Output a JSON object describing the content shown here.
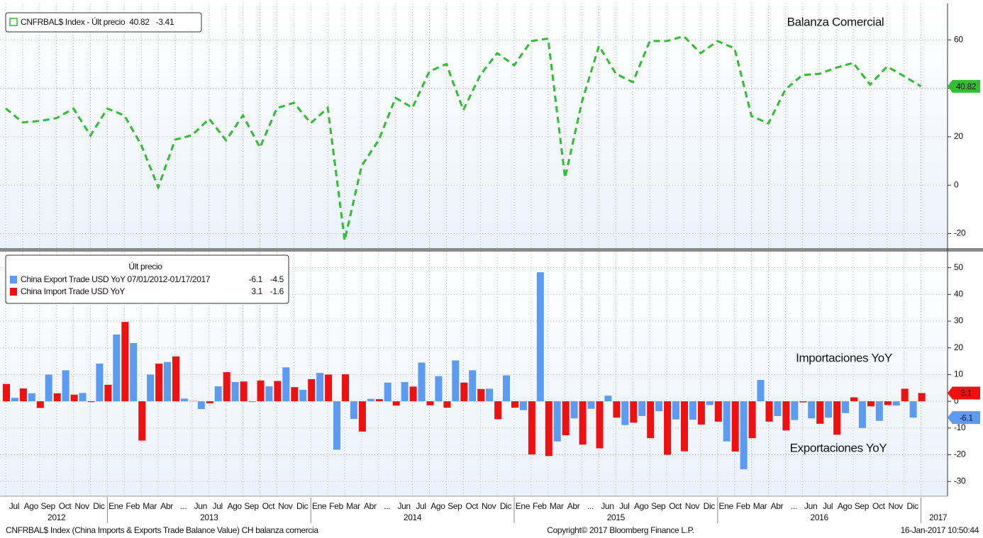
{
  "chart_data": [
    {
      "type": "line",
      "ylim": [
        -26,
        75
      ],
      "yticks": [
        -20,
        0,
        20,
        40,
        60
      ],
      "grid": true,
      "series": [
        {
          "name": "CNFRBAL$ Index - Últ precio",
          "color": "#2fbf2f",
          "change": -3.41,
          "annotation": "Balanza Comercial",
          "values": [
            31.7,
            25.9,
            26.5,
            27.7,
            31.6,
            20.5,
            31.6,
            28.8,
            16.5,
            -0.9,
            18.8,
            20.6,
            27.4,
            18.5,
            28.8,
            15.5,
            31.8,
            34.0,
            25.6,
            31.9,
            -22.8,
            8.0,
            18.5,
            36.0,
            32.0,
            47.0,
            50.0,
            31.0,
            45.5,
            54.5,
            49.5,
            59.5,
            60.5,
            3.0,
            34.5,
            57.5,
            46.0,
            42.5,
            59.5,
            59.5,
            61.5,
            54.5,
            59.5,
            56.5,
            28.5,
            25.5,
            39.5,
            45.5,
            46.0,
            48.5,
            50.5,
            41.5,
            49.0,
            45.0,
            40.82
          ]
        }
      ]
    },
    {
      "type": "bar",
      "ylim": [
        -35.5,
        56
      ],
      "yticks": [
        -30,
        -20,
        -10,
        0,
        10,
        20,
        30,
        40,
        50
      ],
      "grid": true,
      "legend_title": "Últ precio",
      "categories": [
        null,
        "Jul",
        "Ago",
        "Sep",
        "Oct",
        "Nov",
        "Dic",
        "Ene",
        "Feb",
        "Mar",
        "Abr",
        "...",
        "Jun",
        "Jul",
        "Ago",
        "Sep",
        "Oct",
        "Nov",
        "Dic",
        "Ene",
        "Feb",
        "Mar",
        "Abr",
        "...",
        "Jun",
        "Jul",
        "Ago",
        "Sep",
        "Oct",
        "Nov",
        "Dic",
        "Ene",
        "Feb",
        "Mar",
        "Abr",
        "...",
        "Jun",
        "Jul",
        "Ago",
        "Sep",
        "Oct",
        "Nov",
        "Dic",
        "Ene",
        "Feb",
        "Mar",
        "Abr",
        "...",
        "Jun",
        "Jul",
        "Ago",
        "Sep",
        "Oct",
        "Nov",
        "Dic"
      ],
      "year_labels": [
        "2012",
        "2013",
        "2014",
        "2015",
        "2016",
        "2017"
      ],
      "series": [
        {
          "name": "China Export Trade USD YoY 07/01/2012-01/17/2017",
          "color": "#5b9cf2",
          "change": -4.5,
          "annotation": "Exportaciones YoY",
          "values": [
            null,
            1.3,
            3,
            10,
            11.6,
            3.1,
            14.1,
            25,
            21.8,
            10,
            14.7,
            1,
            -2.9,
            5.6,
            7.2,
            -0.3,
            5.6,
            12.7,
            4.3,
            10.6,
            -18.1,
            -6.6,
            0.9,
            7,
            7.2,
            14.5,
            9.4,
            15.3,
            11.6,
            4.7,
            9.7,
            -3.3,
            48.3,
            -15,
            -6.4,
            -2.8,
            2.1,
            -8.9,
            -5.5,
            -3.7,
            -6.8,
            -6.9,
            -1.4,
            -15,
            -25.4,
            8,
            -5.5,
            -7,
            -6.4,
            -6.1,
            -4.4,
            -10,
            -7.3,
            -1.6,
            -6.1
          ]
        },
        {
          "name": "China Import Trade USD YoY",
          "color": "#f01010",
          "change": -1.6,
          "annotation": "Importaciones YoY",
          "values": [
            6.5,
            4.8,
            -2.5,
            3,
            2.5,
            -0.3,
            6.2,
            29.7,
            -14.7,
            14.1,
            16.8,
            0.1,
            -0.7,
            10.9,
            7.4,
            7.8,
            7.6,
            5.3,
            8.3,
            10,
            10.1,
            -11.3,
            0.8,
            -1.6,
            5.5,
            -1.5,
            -2.4,
            7,
            4.6,
            -6.7,
            -2.4,
            -19.9,
            -20.5,
            -12.7,
            -16.2,
            -17.6,
            -6.1,
            -8,
            -13.8,
            -20,
            -18.7,
            -8.7,
            -7.6,
            -18.8,
            -13.8,
            -7.6,
            -10.9,
            -0.4,
            -8.4,
            -12.5,
            1.5,
            -1.9,
            -1.4,
            4.7,
            3.1
          ]
        }
      ]
    }
  ],
  "footer": {
    "left": "CNFRBAL$ Index (China Imports & Exports Trade Balance Value) CH balanza comercia",
    "center": "Copyright© 2017 Bloomberg Finance L.P.",
    "right": "16-Jan-2017 10:50:44"
  }
}
